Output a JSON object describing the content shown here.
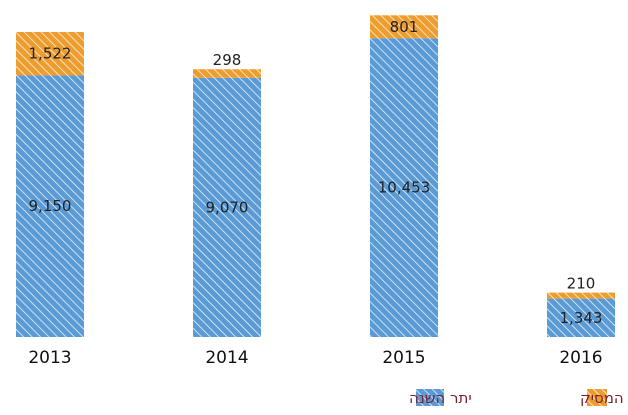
{
  "colors": {
    "base_series": "#5b9bd5",
    "top_series": "#ed9d2e",
    "legend_text": "#7a1f2b"
  },
  "chart_data": {
    "type": "bar",
    "stacked": true,
    "pattern": "diagonal-hatch",
    "categories": [
      "2013",
      "2014",
      "2015",
      "2016"
    ],
    "series": [
      {
        "name": "יתר השנה",
        "values": [
          9150,
          9070,
          10453,
          1343
        ],
        "labels": [
          "9,150",
          "9,070",
          "10,453",
          "1,343"
        ]
      },
      {
        "name": "עונת המסיק",
        "values": [
          1522,
          298,
          801,
          210
        ],
        "labels": [
          "1,522",
          "298",
          "801",
          "210"
        ]
      }
    ],
    "ylim": [
      0,
      11300
    ],
    "grid": false,
    "legend_position": "bottom"
  }
}
